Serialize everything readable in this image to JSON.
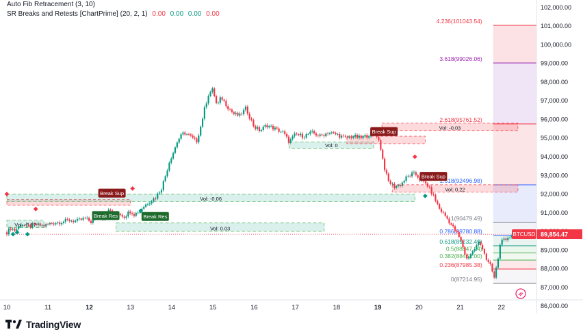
{
  "legend": {
    "line1": "Auto Fib Retracement (3, 10)",
    "line2_name": "SR Breaks and Retests [ChartPrime] (20, 2, 1)",
    "line2_values": [
      "0.00",
      "0.00",
      "0.00",
      "0.00"
    ]
  },
  "brand": {
    "name": "TradingView"
  },
  "symbol": {
    "name": "BTCUSD",
    "last_price": "89,854.47",
    "accent": "#f23645"
  },
  "colors": {
    "up": "#089981",
    "down": "#f23645",
    "fib_red": "#f23645",
    "fib_purple": "#9c27b0",
    "fib_blue": "#2962ff",
    "fib_green": "#4caf50",
    "sr_red": "#f23645",
    "sr_green": "#089981"
  },
  "chart_data": {
    "type": "candlestick",
    "symbol": "BTCUSD",
    "y_axis": {
      "ticks": [
        "102,000.00",
        "101,000.00",
        "100,000.00",
        "99,000.00",
        "98,000.00",
        "97,000.00",
        "96,000.00",
        "95,000.00",
        "94,000.00",
        "93,000.00",
        "92,000.00",
        "91,000.00",
        "90,000.00",
        "89,000.00",
        "88,000.00",
        "87,000.00",
        "86,000.00"
      ],
      "range": [
        85600,
        102400
      ]
    },
    "x_axis": {
      "ticks": [
        "10",
        "11",
        "12",
        "13",
        "14",
        "15",
        "16",
        "17",
        "18",
        "19",
        "20",
        "21",
        "22"
      ],
      "bold_ticks": [
        "12",
        "19"
      ],
      "range": [
        10,
        22.85
      ]
    },
    "close_path": [
      [
        10.0,
        89950
      ],
      [
        10.1,
        90200
      ],
      [
        10.2,
        90050
      ],
      [
        10.35,
        90400
      ],
      [
        10.5,
        90250
      ],
      [
        10.7,
        90350
      ],
      [
        10.9,
        90300
      ],
      [
        11.1,
        90450
      ],
      [
        11.3,
        90500
      ],
      [
        11.5,
        90600
      ],
      [
        11.7,
        90550
      ],
      [
        11.9,
        90700
      ],
      [
        12.05,
        90500
      ],
      [
        12.2,
        90900
      ],
      [
        12.35,
        90700
      ],
      [
        12.5,
        91200
      ],
      [
        12.6,
        90600
      ],
      [
        12.7,
        91000
      ],
      [
        12.85,
        90800
      ],
      [
        13.0,
        91100
      ],
      [
        13.1,
        90900
      ],
      [
        13.25,
        91200
      ],
      [
        13.4,
        91500
      ],
      [
        13.6,
        91800
      ],
      [
        13.75,
        92300
      ],
      [
        13.85,
        93000
      ],
      [
        13.95,
        93800
      ],
      [
        14.05,
        94300
      ],
      [
        14.15,
        94900
      ],
      [
        14.3,
        95300
      ],
      [
        14.45,
        95100
      ],
      [
        14.6,
        94800
      ],
      [
        14.7,
        95600
      ],
      [
        14.8,
        96600
      ],
      [
        14.9,
        97400
      ],
      [
        15.0,
        97600
      ],
      [
        15.1,
        96700
      ],
      [
        15.2,
        97200
      ],
      [
        15.35,
        96700
      ],
      [
        15.5,
        96300
      ],
      [
        15.65,
        96200
      ],
      [
        15.8,
        96600
      ],
      [
        16.0,
        95600
      ],
      [
        16.15,
        95400
      ],
      [
        16.3,
        95700
      ],
      [
        16.5,
        95500
      ],
      [
        16.7,
        95300
      ],
      [
        16.85,
        94800
      ],
      [
        17.0,
        95200
      ],
      [
        17.2,
        95100
      ],
      [
        17.4,
        95300
      ],
      [
        17.6,
        95100
      ],
      [
        17.8,
        95300
      ],
      [
        18.0,
        95200
      ],
      [
        18.2,
        95000
      ],
      [
        18.4,
        95100
      ],
      [
        18.6,
        95000
      ],
      [
        18.8,
        95200
      ],
      [
        18.95,
        95300
      ],
      [
        19.05,
        94700
      ],
      [
        19.15,
        93500
      ],
      [
        19.25,
        92700
      ],
      [
        19.4,
        92400
      ],
      [
        19.55,
        92500
      ],
      [
        19.7,
        92900
      ],
      [
        19.85,
        93100
      ],
      [
        19.95,
        93000
      ],
      [
        20.05,
        92700
      ],
      [
        20.2,
        92500
      ],
      [
        20.35,
        91900
      ],
      [
        20.5,
        91200
      ],
      [
        20.65,
        90800
      ],
      [
        20.8,
        90300
      ],
      [
        20.95,
        89800
      ],
      [
        21.05,
        89300
      ],
      [
        21.15,
        88500
      ],
      [
        21.3,
        88900
      ],
      [
        21.45,
        89400
      ],
      [
        21.55,
        89100
      ],
      [
        21.65,
        88400
      ],
      [
        21.75,
        88100
      ],
      [
        21.82,
        87450
      ],
      [
        21.9,
        88300
      ],
      [
        22.0,
        89700
      ],
      [
        22.1,
        89400
      ],
      [
        22.25,
        89850
      ]
    ],
    "fib_levels": [
      {
        "label": "4.236(101043.54)",
        "value": 101043.54,
        "color": "#f23645"
      },
      {
        "label": "3.618(99026.06)",
        "value": 99026.06,
        "color": "#9c27b0"
      },
      {
        "label": "2.618(95761.52)",
        "value": 95761.52,
        "color": "#f23645"
      },
      {
        "label": "1.618(92496.98)",
        "value": 92496.98,
        "color": "#2962ff"
      },
      {
        "label": "1(90479.49)",
        "value": 90479.49,
        "color": "#787b86"
      },
      {
        "label": "0.786(89780.88)",
        "value": 89780.88,
        "color": "#2962ff"
      },
      {
        "label": "0.618(89232.49)",
        "value": 89232.49,
        "color": "#089981"
      },
      {
        "label": "0.5(88847.24)",
        "value": 88847.24,
        "color": "#4caf50"
      },
      {
        "label": "0.382(88462.00)",
        "value": 88462.0,
        "color": "#4caf50"
      },
      {
        "label": "0.236(87985.38)",
        "value": 87985.38,
        "color": "#f23645"
      },
      {
        "label": "0(87214.95)",
        "value": 87214.95,
        "color": "#787b86"
      }
    ],
    "sr_zones": [
      {
        "type": "resistance",
        "from": 10.0,
        "to": 13.0,
        "top": 91700,
        "bottom": 91400,
        "vol": ""
      },
      {
        "type": "support",
        "from": 10.0,
        "to": 19.9,
        "top": 92000,
        "bottom": 91600,
        "vol": "Vol: -0.06"
      },
      {
        "type": "support",
        "from": 10.0,
        "to": 10.9,
        "top": 90600,
        "bottom": 90200,
        "vol": "Vol: -0.07"
      },
      {
        "type": "support",
        "from": 12.65,
        "to": 17.7,
        "top": 90450,
        "bottom": 90000,
        "vol": "Vol: 0.03"
      },
      {
        "type": "support",
        "from": 16.85,
        "to": 18.9,
        "top": 94800,
        "bottom": 94450,
        "vol": "Vol: 0"
      },
      {
        "type": "resistance",
        "from": 18.25,
        "to": 20.15,
        "top": 95100,
        "bottom": 94700,
        "vol": ""
      },
      {
        "type": "resistance",
        "from": 19.1,
        "to": 22.4,
        "top": 95800,
        "bottom": 95400,
        "vol": "Vol: -0.03"
      },
      {
        "type": "resistance",
        "from": 19.35,
        "to": 22.4,
        "top": 92500,
        "bottom": 92100,
        "vol": "Vol: 0.22"
      }
    ],
    "tags": [
      {
        "text": "Break Sup",
        "x": 12.55,
        "value": 92050,
        "color": "#8b1a1a"
      },
      {
        "text": "Break Res",
        "x": 12.4,
        "value": 90850,
        "color": "#1e6b2e"
      },
      {
        "text": "Break Res",
        "x": 13.6,
        "value": 90800,
        "color": "#1e6b2e"
      },
      {
        "text": "Break Sup",
        "x": 19.15,
        "value": 95350,
        "color": "#8b1a1a"
      },
      {
        "text": "Break Sup",
        "x": 20.35,
        "value": 92950,
        "color": "#8b1a1a"
      }
    ],
    "markers": [
      {
        "shape": "diamond",
        "color": "#f23645",
        "x": 10.0,
        "value": 92000
      },
      {
        "shape": "diamond",
        "color": "#f23645",
        "x": 10.7,
        "value": 91200
      },
      {
        "shape": "diamond",
        "color": "#f23645",
        "x": 13.05,
        "value": 92300
      },
      {
        "shape": "diamond",
        "color": "#f23645",
        "x": 19.9,
        "value": 94000
      },
      {
        "shape": "diamond",
        "color": "#089981",
        "x": 10.15,
        "value": 89850
      },
      {
        "shape": "diamond",
        "color": "#089981",
        "x": 10.25,
        "value": 89950
      },
      {
        "shape": "diamond",
        "color": "#089981",
        "x": 10.5,
        "value": 89850
      },
      {
        "shape": "diamond",
        "color": "#089981",
        "x": 13.25,
        "value": 91100
      },
      {
        "shape": "diamond",
        "color": "#089981",
        "x": 20.15,
        "value": 91900
      }
    ]
  }
}
